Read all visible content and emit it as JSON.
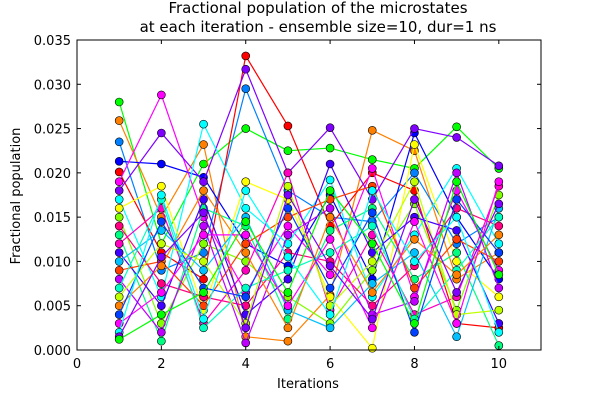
{
  "chart_data": {
    "type": "line",
    "title_lines": [
      "Fractional population of the microstates",
      "at each iteration - ensemble size=10, dur=1 ns"
    ],
    "xlabel": "Iterations",
    "ylabel": "Fractional population",
    "xlim": [
      0,
      11
    ],
    "ylim": [
      0.0,
      0.035
    ],
    "xticks": [
      0,
      2,
      4,
      6,
      8,
      10
    ],
    "yticks": [
      0.0,
      0.005,
      0.01,
      0.015,
      0.02,
      0.025,
      0.03,
      0.035
    ],
    "xtick_labels": [
      "0",
      "2",
      "4",
      "6",
      "8",
      "10"
    ],
    "ytick_labels": [
      "0.000",
      "0.005",
      "0.010",
      "0.015",
      "0.020",
      "0.025",
      "0.030",
      "0.035"
    ],
    "grid": false,
    "legend": "none",
    "marker": "circle",
    "x": [
      1,
      2,
      3,
      4,
      5,
      6,
      7,
      8,
      9,
      10
    ],
    "series": [
      {
        "color": "#00ff00",
        "values": [
          0.028,
          0.012,
          0.021,
          0.025,
          0.0225,
          0.0228,
          0.0215,
          0.0205,
          0.0252,
          0.0205
        ]
      },
      {
        "color": "#ff8000",
        "values": [
          0.0259,
          0.015,
          0.0232,
          0.0015,
          0.001,
          0.0062,
          0.0248,
          0.0225,
          0.008,
          0.011
        ]
      },
      {
        "color": "#0080ff",
        "values": [
          0.0235,
          0.009,
          0.011,
          0.0295,
          0.018,
          0.015,
          0.0145,
          0.02,
          0.012,
          0.015
        ]
      },
      {
        "color": "#0000ff",
        "values": [
          0.0213,
          0.021,
          0.0195,
          0.012,
          0.0095,
          0.0175,
          0.008,
          0.0245,
          0.015,
          0.008
        ]
      },
      {
        "color": "#ff0000",
        "values": [
          0.0201,
          0.011,
          0.008,
          0.0332,
          0.0253,
          0.014,
          0.02,
          0.018,
          0.003,
          0.0025
        ]
      },
      {
        "color": "#ff00ff",
        "values": [
          0.019,
          0.0288,
          0.015,
          0.0065,
          0.014,
          0.0085,
          0.0205,
          0.006,
          0.018,
          0.009
        ]
      },
      {
        "color": "#8000ff",
        "values": [
          0.018,
          0.0245,
          0.019,
          0.0317,
          0.02,
          0.0251,
          0.017,
          0.025,
          0.024,
          0.0208
        ]
      },
      {
        "color": "#00ffff",
        "values": [
          0.017,
          0.006,
          0.0255,
          0.016,
          0.012,
          0.0192,
          0.006,
          0.013,
          0.0205,
          0.012
        ]
      },
      {
        "color": "#ffff00",
        "values": [
          0.016,
          0.0185,
          0.0045,
          0.019,
          0.017,
          0.006,
          0.0002,
          0.0232,
          0.01,
          0.006
        ]
      },
      {
        "color": "#80ff00",
        "values": [
          0.015,
          0.003,
          0.012,
          0.01,
          0.006,
          0.003,
          0.009,
          0.0165,
          0.0045,
          0.0175
        ]
      },
      {
        "color": "#ff0080",
        "values": [
          0.014,
          0.0075,
          0.006,
          0.005,
          0.011,
          0.01,
          0.005,
          0.0095,
          0.016,
          0.014
        ]
      },
      {
        "color": "#00ff80",
        "values": [
          0.013,
          0.001,
          0.016,
          0.014,
          0.0035,
          0.0135,
          0.016,
          0.008,
          0.011,
          0.0005
        ]
      },
      {
        "color": "#ff00c0",
        "values": [
          0.012,
          0.016,
          0.003,
          0.009,
          0.02,
          0.0045,
          0.013,
          0.004,
          0.006,
          0.0185
        ]
      },
      {
        "color": "#4000ff",
        "values": [
          0.011,
          0.005,
          0.017,
          0.004,
          0.008,
          0.021,
          0.011,
          0.015,
          0.0135,
          0.003
        ]
      },
      {
        "color": "#00c0ff",
        "values": [
          0.01,
          0.0135,
          0.009,
          0.015,
          0.0045,
          0.0025,
          0.0075,
          0.011,
          0.0015,
          0.016
        ]
      },
      {
        "color": "#ff4000",
        "values": [
          0.009,
          0.01,
          0.005,
          0.012,
          0.015,
          0.017,
          0.0185,
          0.007,
          0.0125,
          0.01
        ]
      },
      {
        "color": "#c000ff",
        "values": [
          0.008,
          0.002,
          0.014,
          0.0008,
          0.013,
          0.016,
          0.004,
          0.0055,
          0.02,
          0.007
        ]
      },
      {
        "color": "#00ffc0",
        "values": [
          0.007,
          0.017,
          0.0025,
          0.007,
          0.009,
          0.011,
          0.014,
          0.0035,
          0.009,
          0.015
        ]
      },
      {
        "color": "#c0ff00",
        "values": [
          0.006,
          0.012,
          0.01,
          0.003,
          0.0185,
          0.005,
          0.01,
          0.019,
          0.004,
          0.0045
        ]
      },
      {
        "color": "#ff8000",
        "values": [
          0.005,
          0.0095,
          0.018,
          0.011,
          0.0025,
          0.015,
          0.0065,
          0.0125,
          0.0085,
          0.013
        ]
      },
      {
        "color": "#0040ff",
        "values": [
          0.004,
          0.0145,
          0.007,
          0.006,
          0.016,
          0.007,
          0.0155,
          0.002,
          0.017,
          0.011
        ]
      },
      {
        "color": "#ff00ff",
        "values": [
          0.003,
          0.0065,
          0.013,
          0.013,
          0.005,
          0.0125,
          0.0025,
          0.0145,
          0.003,
          0.019
        ]
      },
      {
        "color": "#00ffff",
        "values": [
          0.002,
          0.0175,
          0.0035,
          0.018,
          0.0105,
          0.004,
          0.018,
          0.01,
          0.015,
          0.002
        ]
      },
      {
        "color": "#8000ff",
        "values": [
          0.0015,
          0.0105,
          0.0155,
          0.0025,
          0.0175,
          0.0095,
          0.0035,
          0.017,
          0.0065,
          0.0165
        ]
      },
      {
        "color": "#00ff00",
        "values": [
          0.0012,
          0.004,
          0.0065,
          0.0145,
          0.0065,
          0.018,
          0.012,
          0.003,
          0.019,
          0.0085
        ]
      }
    ]
  }
}
